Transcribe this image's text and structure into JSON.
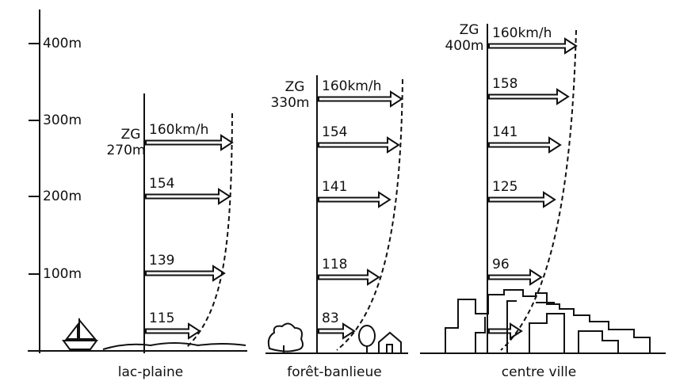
{
  "axis": {
    "ticks": [
      "400m",
      "300m",
      "200m",
      "100m"
    ]
  },
  "panels": [
    {
      "name": "lac-plaine",
      "gradient_symbol": "ZG",
      "gradient_height": "270m",
      "arrows": [
        "160km/h",
        "154",
        "139",
        "115"
      ]
    },
    {
      "name": "forêt-banlieue",
      "gradient_symbol": "ZG",
      "gradient_height": "330m",
      "arrows": [
        "160km/h",
        "154",
        "141",
        "118",
        "83"
      ]
    },
    {
      "name": "centre ville",
      "gradient_symbol": "ZG",
      "gradient_height": "400m",
      "arrows": [
        "160km/h",
        "158",
        "141",
        "125",
        "96"
      ]
    }
  ]
}
